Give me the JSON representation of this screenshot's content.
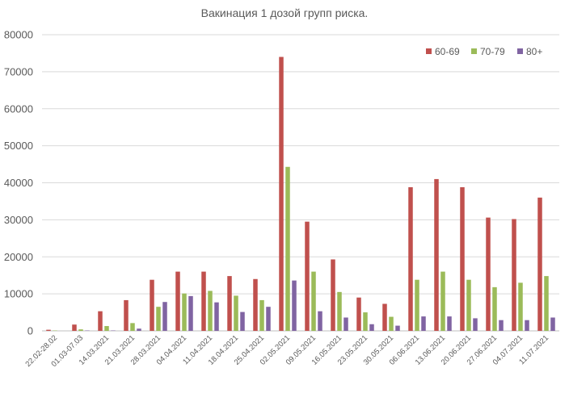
{
  "chart_data": {
    "type": "bar",
    "title": "Вакинация 1 дозой групп риска.",
    "xlabel": "",
    "ylabel": "",
    "ylim": [
      0,
      80000
    ],
    "yticks": [
      0,
      10000,
      20000,
      30000,
      40000,
      50000,
      60000,
      70000,
      80000
    ],
    "grid": true,
    "legend_position": "top-right",
    "categories": [
      "22.02-28.02",
      "01.03-07.03",
      "14.03.2021",
      "21.03.2021",
      "28.03.2021",
      "04.04.2021",
      "11.04.2021",
      "18.04.2021",
      "25.04.2021",
      "02.05.2021",
      "09.05.2021",
      "16.05.2021",
      "23.05.2021",
      "30.05.2021",
      "06.06.2021",
      "13.06.2021",
      "20.06.2021",
      "27.06.2021",
      "04.07.2021",
      "11.07.2021"
    ],
    "series": [
      {
        "name": "60-69",
        "color": "#c0504d",
        "values": [
          300,
          1700,
          5300,
          8300,
          13800,
          16000,
          16000,
          14800,
          14000,
          74000,
          29500,
          19300,
          9000,
          7300,
          38800,
          41000,
          38800,
          30600,
          30200,
          36000
        ]
      },
      {
        "name": "70-79",
        "color": "#9bbb59",
        "values": [
          100,
          400,
          1300,
          2100,
          6500,
          10100,
          10800,
          9500,
          8300,
          44300,
          16000,
          10500,
          5000,
          3800,
          13800,
          16000,
          13800,
          11800,
          13000,
          14800
        ]
      },
      {
        "name": "80+",
        "color": "#8064a2",
        "values": [
          0,
          100,
          100,
          600,
          7800,
          9400,
          7700,
          5100,
          6500,
          13600,
          5300,
          3600,
          1800,
          1400,
          3900,
          3900,
          3400,
          2900,
          2900,
          3600
        ]
      }
    ]
  }
}
